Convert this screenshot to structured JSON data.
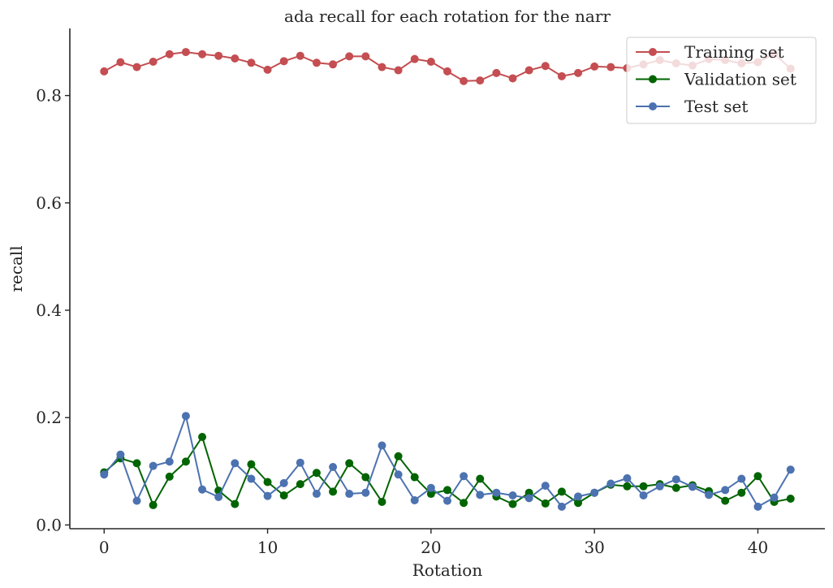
{
  "chart_data": {
    "type": "line",
    "title": "ada recall for each rotation for the narr",
    "xlabel": "Rotation",
    "ylabel": "recall",
    "xlim": [
      -2.1,
      44.1
    ],
    "ylim": [
      -0.007,
      0.925
    ],
    "xticks": [
      0,
      10,
      20,
      30,
      40
    ],
    "yticks": [
      0.0,
      0.2,
      0.4,
      0.6,
      0.8
    ],
    "legend_position": "top-right",
    "x": [
      0,
      1,
      2,
      3,
      4,
      5,
      6,
      7,
      8,
      9,
      10,
      11,
      12,
      13,
      14,
      15,
      16,
      17,
      18,
      19,
      20,
      21,
      22,
      23,
      24,
      25,
      26,
      27,
      28,
      29,
      30,
      31,
      32,
      33,
      34,
      35,
      36,
      37,
      38,
      39,
      40,
      41,
      42
    ],
    "series": [
      {
        "name": "Training set",
        "color": "#c44e52",
        "values": [
          0.845,
          0.862,
          0.853,
          0.863,
          0.877,
          0.881,
          0.877,
          0.874,
          0.869,
          0.861,
          0.848,
          0.864,
          0.874,
          0.861,
          0.858,
          0.873,
          0.873,
          0.853,
          0.847,
          0.868,
          0.863,
          0.845,
          0.827,
          0.828,
          0.842,
          0.832,
          0.847,
          0.855,
          0.836,
          0.842,
          0.854,
          0.853,
          0.851,
          0.858,
          0.866,
          0.86,
          0.856,
          0.868,
          0.866,
          0.86,
          0.862,
          0.878,
          0.85
        ]
      },
      {
        "name": "Validation set",
        "color": "#006400",
        "values": [
          0.098,
          0.124,
          0.115,
          0.037,
          0.09,
          0.118,
          0.164,
          0.064,
          0.039,
          0.113,
          0.08,
          0.055,
          0.076,
          0.097,
          0.062,
          0.115,
          0.089,
          0.043,
          0.128,
          0.089,
          0.058,
          0.065,
          0.041,
          0.086,
          0.053,
          0.039,
          0.06,
          0.04,
          0.062,
          0.041,
          0.06,
          0.075,
          0.072,
          0.072,
          0.076,
          0.069,
          0.074,
          0.063,
          0.045,
          0.06,
          0.091,
          0.043,
          0.049
        ]
      },
      {
        "name": "Test set",
        "color": "#4c72b0",
        "values": [
          0.094,
          0.131,
          0.045,
          0.11,
          0.118,
          0.203,
          0.066,
          0.052,
          0.115,
          0.086,
          0.054,
          0.078,
          0.116,
          0.058,
          0.108,
          0.058,
          0.06,
          0.148,
          0.094,
          0.046,
          0.069,
          0.045,
          0.091,
          0.056,
          0.06,
          0.055,
          0.05,
          0.073,
          0.034,
          0.053,
          0.06,
          0.077,
          0.087,
          0.055,
          0.072,
          0.085,
          0.071,
          0.056,
          0.065,
          0.086,
          0.034,
          0.051,
          0.103
        ]
      }
    ]
  }
}
